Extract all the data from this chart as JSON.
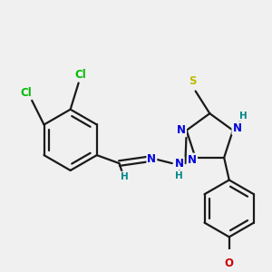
{
  "bg_color": "#f0f0f0",
  "bond_color": "#1a1a1a",
  "bond_width": 1.6,
  "atom_colors": {
    "Cl": "#00bb00",
    "N": "#0000dd",
    "S": "#bbbb00",
    "O": "#cc0000",
    "H": "#008888",
    "C": "#1a1a1a"
  },
  "font_size": 8.5,
  "font_size_small": 7.5
}
